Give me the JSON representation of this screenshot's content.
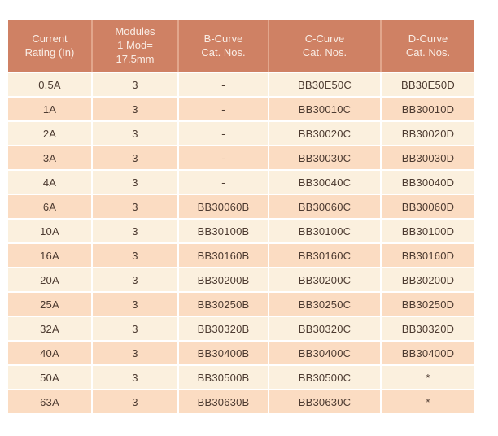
{
  "table": {
    "columns": [
      {
        "id": "rating",
        "lines": [
          "Current",
          "Rating (In)"
        ]
      },
      {
        "id": "modules",
        "lines": [
          "Modules",
          "1 Mod=",
          "17.5mm"
        ]
      },
      {
        "id": "b-curve",
        "lines": [
          "B-Curve",
          "Cat. Nos."
        ]
      },
      {
        "id": "c-curve",
        "lines": [
          "C-Curve",
          "Cat. Nos."
        ]
      },
      {
        "id": "d-curve",
        "lines": [
          "D-Curve",
          "Cat. Nos."
        ]
      }
    ],
    "rows": [
      [
        "0.5A",
        "3",
        "-",
        "BB30E50C",
        "BB30E50D"
      ],
      [
        "1A",
        "3",
        "-",
        "BB30010C",
        "BB30010D"
      ],
      [
        "2A",
        "3",
        "-",
        "BB30020C",
        "BB30020D"
      ],
      [
        "3A",
        "3",
        "-",
        "BB30030C",
        "BB30030D"
      ],
      [
        "4A",
        "3",
        "-",
        "BB30040C",
        "BB30040D"
      ],
      [
        "6A",
        "3",
        "BB30060B",
        "BB30060C",
        "BB30060D"
      ],
      [
        "10A",
        "3",
        "BB30100B",
        "BB30100C",
        "BB30100D"
      ],
      [
        "16A",
        "3",
        "BB30160B",
        "BB30160C",
        "BB30160D"
      ],
      [
        "20A",
        "3",
        "BB30200B",
        "BB30200C",
        "BB30200D"
      ],
      [
        "25A",
        "3",
        "BB30250B",
        "BB30250C",
        "BB30250D"
      ],
      [
        "32A",
        "3",
        "BB30320B",
        "BB30320C",
        "BB30320D"
      ],
      [
        "40A",
        "3",
        "BB30400B",
        "BB30400C",
        "BB30400D"
      ],
      [
        "50A",
        "3",
        "BB30500B",
        "BB30500C",
        "*"
      ],
      [
        "63A",
        "3",
        "BB30630B",
        "BB30630C",
        "*"
      ]
    ]
  },
  "colors": {
    "header_bg": "#cf8164",
    "header_text": "#f9ede5",
    "header_divider": "#e2a68c",
    "row_light": "#fbf0de",
    "row_dark": "#fbdcc2",
    "body_text": "#4c3a30",
    "grid": "#ffffff"
  }
}
